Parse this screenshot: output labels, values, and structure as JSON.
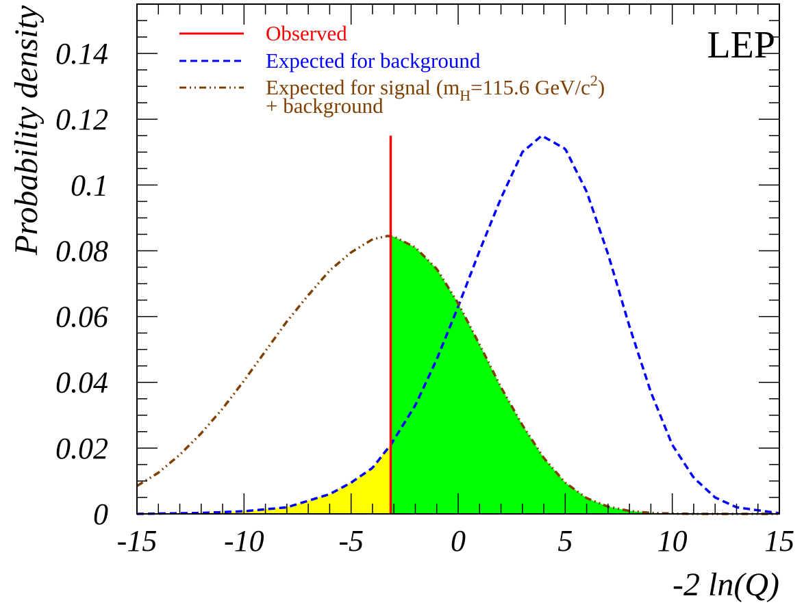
{
  "chart_data": {
    "type": "line",
    "experiment_label": "LEP",
    "xlabel": "-2 ln(Q)",
    "ylabel": "Probability density",
    "xlim": [
      -15,
      15
    ],
    "ylim": [
      0,
      0.155
    ],
    "x_ticks": [
      -15,
      -10,
      -5,
      0,
      5,
      10,
      15
    ],
    "x_tick_labels": [
      "-15",
      "-10",
      "-5",
      "0",
      "5",
      "10",
      "15"
    ],
    "y_ticks": [
      0,
      0.02,
      0.04,
      0.06,
      0.08,
      0.1,
      0.12,
      0.14
    ],
    "y_tick_labels": [
      "0",
      "0.02",
      "0.04",
      "0.06",
      "0.08",
      "0.1",
      "0.12",
      "0.14"
    ],
    "observed": {
      "x": -3.15,
      "y_top": 0.115
    },
    "series": [
      {
        "name": "Expected for background",
        "style": "dashed",
        "color": "#0000ff",
        "x": [
          -15,
          -12,
          -10,
          -8,
          -6,
          -5,
          -4,
          -3.15,
          -2,
          -1,
          0,
          1,
          2,
          3,
          3.9,
          5,
          6,
          7,
          8,
          9,
          10,
          11,
          12,
          13,
          15
        ],
        "y": [
          0.0,
          0.0003,
          0.0008,
          0.002,
          0.006,
          0.0095,
          0.014,
          0.021,
          0.033,
          0.047,
          0.063,
          0.08,
          0.096,
          0.11,
          0.115,
          0.111,
          0.098,
          0.079,
          0.057,
          0.037,
          0.021,
          0.011,
          0.005,
          0.002,
          0.0002
        ]
      },
      {
        "name": "Expected for signal (m_H=115.6 GeV/c^2) + background",
        "style": "dash-dot",
        "color": "#7f3f00",
        "x": [
          -15,
          -14,
          -13,
          -12,
          -11,
          -10,
          -9,
          -8,
          -7,
          -6,
          -5,
          -4,
          -3.3,
          -3,
          -2,
          -1,
          0,
          1,
          2,
          3,
          4,
          5,
          6,
          7,
          8,
          9,
          10,
          11,
          12,
          13,
          15
        ],
        "y": [
          0.0085,
          0.0125,
          0.018,
          0.0245,
          0.032,
          0.0405,
          0.0495,
          0.0585,
          0.0665,
          0.074,
          0.0795,
          0.0835,
          0.0845,
          0.0843,
          0.081,
          0.0745,
          0.064,
          0.0515,
          0.0385,
          0.027,
          0.017,
          0.0095,
          0.0048,
          0.0022,
          0.0009,
          0.0003,
          0.0001,
          0.0,
          0.0,
          0.0,
          0.0
        ]
      }
    ],
    "shaded_regions": [
      {
        "color": "#ffff00",
        "under": "Expected for background",
        "x_from": -15,
        "x_to": -3.15
      },
      {
        "color": "#00ff00",
        "under": "Expected for signal (m_H=115.6 GeV/c^2) + background",
        "x_from": -3.15,
        "x_to": 15
      }
    ],
    "legend": {
      "placement": "top-left",
      "items": [
        {
          "label": "Observed",
          "style": "solid",
          "color": "#ff0000"
        },
        {
          "label": "Expected for background",
          "style": "dashed",
          "color": "#0000ff"
        },
        {
          "label": "Expected for signal (m",
          "sub": "H",
          "mid": "=115.6 GeV/c",
          "sup": "2",
          "tail": ")",
          "label_line2": "+ background",
          "style": "dash-dot",
          "color": "#7f3f00"
        }
      ]
    },
    "grid": false
  }
}
